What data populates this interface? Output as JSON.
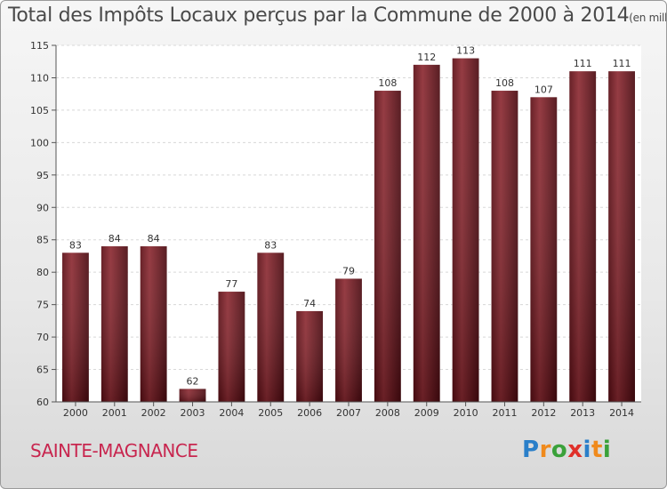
{
  "header": {
    "title": "Total des Impôts Locaux perçus par la Commune de 2000 à 2014",
    "unit": "(en milliers d'€)"
  },
  "commune": "SAINTE-MAGNANCE",
  "logo": {
    "letters": [
      "P",
      "r",
      "o",
      "x",
      "i",
      "t",
      "i"
    ],
    "colors": [
      "#2a7fc9",
      "#f08a1c",
      "#3aa13a",
      "#e0302a",
      "#2a7fc9",
      "#f08a1c",
      "#3aa13a"
    ]
  },
  "chart_data": {
    "type": "bar",
    "categories": [
      "2000",
      "2001",
      "2002",
      "2003",
      "2004",
      "2005",
      "2006",
      "2007",
      "2008",
      "2009",
      "2010",
      "2011",
      "2012",
      "2013",
      "2014"
    ],
    "values": [
      83,
      84,
      84,
      62,
      77,
      83,
      74,
      79,
      108,
      112,
      113,
      108,
      107,
      111,
      111
    ],
    "ylim": [
      60,
      115
    ],
    "yticks": [
      60,
      65,
      70,
      75,
      80,
      85,
      90,
      95,
      100,
      105,
      110,
      115
    ],
    "grid": true,
    "bar_color": "#7a1e26"
  }
}
